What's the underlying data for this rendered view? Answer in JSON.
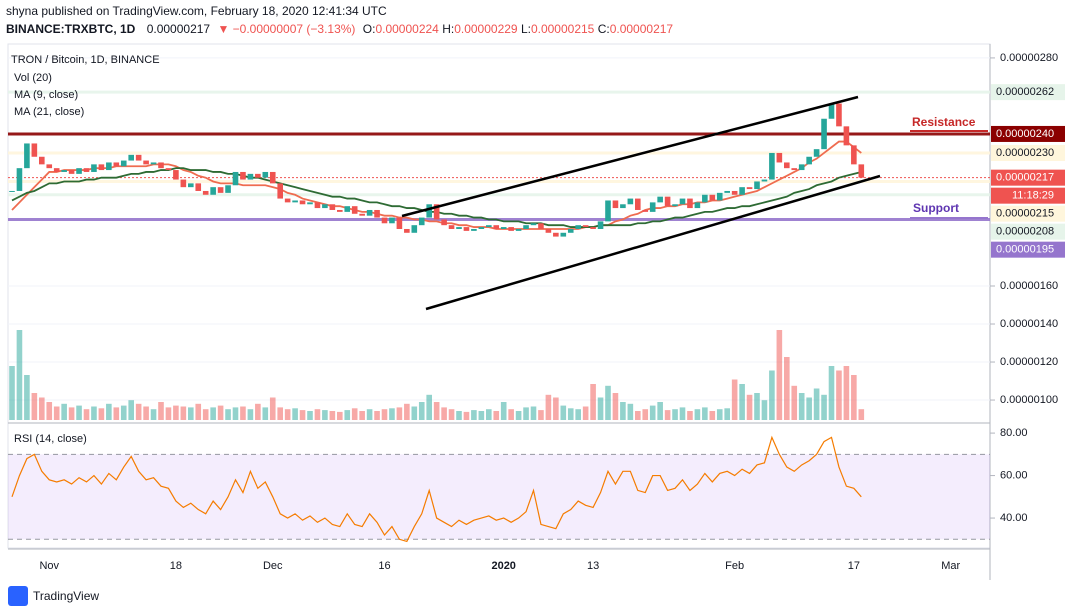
{
  "header": {
    "published": "shyna published on TradingView.com, February 18, 2020 12:41:34 UTC",
    "symbol": "BINANCE:TRXBTC, 1D",
    "last": "0.00000217",
    "change": "▼ −0.00000007 (−3.13%)",
    "o_label": "O:",
    "o": "0.00000224",
    "h_label": "H:",
    "h": "0.00000229",
    "l_label": "L:",
    "l": "0.00000215",
    "c_label": "C:",
    "c": "0.00000217"
  },
  "legend": {
    "pair": "TRON / Bitcoin, 1D, BINANCE",
    "vol": "Vol (20)",
    "ma9": "MA (9, close)",
    "ma21": "MA (21, close)"
  },
  "annotations": {
    "resistance": "Resistance",
    "support": "Support"
  },
  "footer": {
    "brand": "TradingView"
  },
  "chart_data": {
    "type": "candlestick",
    "up_color": "#26a69a",
    "down_color": "#ef5350",
    "ylim": [
      8.95e-07,
      2.868e-06
    ],
    "yticks": [
      {
        "value": 2.8e-06,
        "label": "0.00000280"
      },
      {
        "value": 1.6e-06,
        "label": "0.00000160"
      },
      {
        "value": 1.4e-06,
        "label": "0.00000140"
      },
      {
        "value": 1.2e-06,
        "label": "0.00000120"
      },
      {
        "value": 1e-06,
        "label": "0.00000100"
      }
    ],
    "badges": [
      {
        "value": 2.62e-06,
        "label": "0.00000262",
        "fill": "#e6f4ea",
        "color": "#131722"
      },
      {
        "value": 2.4e-06,
        "label": "0.00000240",
        "fill": "#8b0000",
        "color": "#ffffff"
      },
      {
        "value": 2.3e-06,
        "label": "0.00000230",
        "fill": "#fff6dc",
        "color": "#131722"
      },
      {
        "value": 2.17e-06,
        "label": "0.00000217",
        "fill": "#ef5350",
        "color": "#ffffff"
      },
      {
        "label": "11:18:29",
        "fill": "#ef5350",
        "color": "#ffffff"
      },
      {
        "value": 2.15e-06,
        "label": "0.00000215",
        "fill": "#fff6dc",
        "color": "#131722"
      },
      {
        "value": 2.08e-06,
        "label": "0.00000208",
        "fill": "#e6f4ea",
        "color": "#131722"
      },
      {
        "value": 1.95e-06,
        "label": "0.00000195",
        "fill": "#9575cd",
        "color": "#ffffff"
      }
    ],
    "categories": [
      null,
      null,
      null,
      null,
      null,
      "Nov",
      null,
      null,
      null,
      null,
      null,
      null,
      null,
      null,
      null,
      null,
      null,
      null,
      null,
      null,
      null,
      null,
      "18",
      null,
      null,
      null,
      null,
      null,
      null,
      null,
      null,
      null,
      null,
      null,
      null,
      "Dec",
      null,
      null,
      null,
      null,
      null,
      null,
      null,
      null,
      null,
      null,
      null,
      null,
      null,
      null,
      "16",
      null,
      null,
      null,
      null,
      null,
      null,
      null,
      null,
      null,
      null,
      null,
      null,
      null,
      null,
      null,
      "2020",
      null,
      null,
      null,
      null,
      null,
      null,
      null,
      null,
      null,
      null,
      null,
      "13",
      null,
      null,
      null,
      null,
      null,
      null,
      null,
      null,
      null,
      null,
      null,
      null,
      null,
      null,
      null,
      null,
      null,
      null,
      "Feb",
      null,
      null,
      null,
      null,
      null,
      null,
      null,
      null,
      null,
      null,
      null,
      null,
      null,
      null,
      null,
      "17",
      null,
      null,
      null,
      null,
      null,
      null,
      null,
      null,
      null,
      null,
      null,
      null,
      "Mar",
      null,
      null,
      null,
      null,
      null
    ],
    "close": [
      2.1e-06,
      2.22e-06,
      2.35e-06,
      2.28e-06,
      2.24e-06,
      2.22e-06,
      2.2e-06,
      2.21e-06,
      2.19e-06,
      2.22e-06,
      2.2e-06,
      2.24e-06,
      2.21e-06,
      2.25e-06,
      2.23e-06,
      2.26e-06,
      2.29e-06,
      2.26e-06,
      2.24e-06,
      2.25e-06,
      2.22e-06,
      2.21e-06,
      2.16e-06,
      2.12e-06,
      2.14e-06,
      2.1e-06,
      2.08e-06,
      2.12e-06,
      2.09e-06,
      2.13e-06,
      2.2e-06,
      2.16e-06,
      2.19e-06,
      2.17e-06,
      2.2e-06,
      2.14e-06,
      2.06e-06,
      2.04e-06,
      2.05e-06,
      2.03e-06,
      2.04e-06,
      2.01e-06,
      2.03e-06,
      2e-06,
      1.99e-06,
      2.02e-06,
      1.98e-06,
      1.97e-06,
      2e-06,
      1.96e-06,
      1.93e-06,
      1.96e-06,
      1.9e-06,
      1.88e-06,
      1.92e-06,
      1.96e-06,
      2.03e-06,
      1.95e-06,
      1.92e-06,
      1.9e-06,
      1.91e-06,
      1.89e-06,
      1.9e-06,
      1.91e-06,
      1.92e-06,
      1.9e-06,
      1.91e-06,
      1.89e-06,
      1.9e-06,
      1.92e-06,
      1.93e-06,
      1.9e-06,
      1.88e-06,
      1.86e-06,
      1.88e-06,
      1.9e-06,
      1.92e-06,
      1.91e-06,
      1.9e-06,
      1.94e-06,
      2.05e-06,
      2.01e-06,
      2.03e-06,
      2.06e-06,
      2e-06,
      1.99e-06,
      2.04e-06,
      2.07e-06,
      2.02e-06,
      2.03e-06,
      2.06e-06,
      2.01e-06,
      2.04e-06,
      2.08e-06,
      2.05e-06,
      2.09e-06,
      2.1e-06,
      2.08e-06,
      2.12e-06,
      2.11e-06,
      2.15e-06,
      2.16e-06,
      2.3e-06,
      2.25e-06,
      2.22e-06,
      2.21e-06,
      2.24e-06,
      2.28e-06,
      2.32e-06,
      2.48e-06,
      2.56e-06,
      2.44e-06,
      2.34e-06,
      2.24e-06,
      2.17e-06,
      null,
      null,
      null,
      null,
      null,
      null,
      null,
      null,
      null,
      null,
      null,
      null,
      null,
      null,
      null,
      null,
      null
    ],
    "series": [
      {
        "name": "MA (9, close)",
        "color": "#ef6c50",
        "values": [
          2e-06,
          2.04e-06,
          2.08e-06,
          2.12e-06,
          2.16e-06,
          2.2e-06,
          2.2e-06,
          2.21e-06,
          2.21e-06,
          2.21e-06,
          2.21e-06,
          2.22e-06,
          2.22e-06,
          2.22e-06,
          2.23e-06,
          2.23e-06,
          2.23e-06,
          2.23e-06,
          2.23e-06,
          2.24e-06,
          2.24e-06,
          2.24e-06,
          2.23e-06,
          2.21e-06,
          2.2e-06,
          2.18e-06,
          2.17e-06,
          2.15e-06,
          2.14e-06,
          2.14e-06,
          2.14e-06,
          2.13e-06,
          2.13e-06,
          2.13e-06,
          2.13e-06,
          2.12e-06,
          2.11e-06,
          2.09e-06,
          2.08e-06,
          2.06e-06,
          2.05e-06,
          2.04e-06,
          2.03e-06,
          2.02e-06,
          2.02e-06,
          2.01e-06,
          2e-06,
          1.99e-06,
          1.99e-06,
          1.98e-06,
          1.97e-06,
          1.97e-06,
          1.96e-06,
          1.96e-06,
          1.95e-06,
          1.95e-06,
          1.94e-06,
          1.94e-06,
          1.93e-06,
          1.93e-06,
          1.92e-06,
          1.92e-06,
          1.91e-06,
          1.91e-06,
          1.91e-06,
          1.9e-06,
          1.9e-06,
          1.9e-06,
          1.9e-06,
          1.9e-06,
          1.9e-06,
          1.9e-06,
          1.9e-06,
          1.9e-06,
          1.9e-06,
          1.9e-06,
          1.9e-06,
          1.91e-06,
          1.91e-06,
          1.92e-06,
          1.92e-06,
          1.94e-06,
          1.95e-06,
          1.97e-06,
          1.98e-06,
          2e-06,
          2.01e-06,
          2.01e-06,
          2.02e-06,
          2.02e-06,
          2.03e-06,
          2.03e-06,
          2.04e-06,
          2.04e-06,
          2.05e-06,
          2.05e-06,
          2.06e-06,
          2.07e-06,
          2.08e-06,
          2.09e-06,
          2.1e-06,
          2.12e-06,
          2.14e-06,
          2.16e-06,
          2.18e-06,
          2.2e-06,
          2.22e-06,
          2.25e-06,
          2.27e-06,
          2.3e-06,
          2.33e-06,
          2.36e-06,
          2.36e-06,
          2.33e-06,
          2.3e-06,
          null,
          null,
          null,
          null,
          null,
          null,
          null,
          null,
          null,
          null,
          null,
          null,
          null,
          null,
          null,
          null,
          null
        ]
      },
      {
        "name": "MA (21, close)",
        "color": "#2e6b34",
        "values": [
          2.05e-06,
          2.07e-06,
          2.09e-06,
          2.1e-06,
          2.12e-06,
          2.14e-06,
          2.14e-06,
          2.15e-06,
          2.15e-06,
          2.15e-06,
          2.16e-06,
          2.16e-06,
          2.17e-06,
          2.17e-06,
          2.17e-06,
          2.18e-06,
          2.19e-06,
          2.19e-06,
          2.2e-06,
          2.2e-06,
          2.21e-06,
          2.21e-06,
          2.22e-06,
          2.22e-06,
          2.21e-06,
          2.21e-06,
          2.21e-06,
          2.2e-06,
          2.2e-06,
          2.19e-06,
          2.19e-06,
          2.18e-06,
          2.17e-06,
          2.17e-06,
          2.16e-06,
          2.15e-06,
          2.14e-06,
          2.13e-06,
          2.12e-06,
          2.11e-06,
          2.1e-06,
          2.09e-06,
          2.08e-06,
          2.07e-06,
          2.07e-06,
          2.06e-06,
          2.06e-06,
          2.05e-06,
          2.04e-06,
          2.04e-06,
          2.03e-06,
          2.02e-06,
          2.02e-06,
          2.01e-06,
          2.01e-06,
          2e-06,
          1.99e-06,
          1.99e-06,
          1.98e-06,
          1.98e-06,
          1.97e-06,
          1.97e-06,
          1.96e-06,
          1.96e-06,
          1.95e-06,
          1.95e-06,
          1.94e-06,
          1.94e-06,
          1.94e-06,
          1.93e-06,
          1.93e-06,
          1.93e-06,
          1.92e-06,
          1.92e-06,
          1.92e-06,
          1.91e-06,
          1.91e-06,
          1.91e-06,
          1.91e-06,
          1.92e-06,
          1.92e-06,
          1.92e-06,
          1.92e-06,
          1.92e-06,
          1.93e-06,
          1.93e-06,
          1.94e-06,
          1.94e-06,
          1.95e-06,
          1.96e-06,
          1.96e-06,
          1.97e-06,
          1.98e-06,
          1.99e-06,
          1.99e-06,
          2e-06,
          2.01e-06,
          2.01e-06,
          2.02e-06,
          2.02e-06,
          2.03e-06,
          2.04e-06,
          2.05e-06,
          2.06e-06,
          2.07e-06,
          2.09e-06,
          2.1e-06,
          2.11e-06,
          2.13e-06,
          2.14e-06,
          2.15e-06,
          2.17e-06,
          2.18e-06,
          2.19e-06,
          2.2e-06,
          null,
          null,
          null,
          null,
          null,
          null,
          null,
          null,
          null,
          null,
          null,
          null,
          null,
          null,
          null,
          null,
          null
        ]
      }
    ],
    "volume": [
      60,
      100,
      50,
      30,
      25,
      20,
      15,
      18,
      14,
      16,
      12,
      15,
      13,
      18,
      14,
      16,
      22,
      18,
      15,
      12,
      20,
      14,
      16,
      15,
      14,
      18,
      12,
      14,
      16,
      12,
      14,
      15,
      12,
      18,
      14,
      25,
      14,
      12,
      13,
      11,
      10,
      12,
      11,
      10,
      9,
      11,
      13,
      10,
      12,
      10,
      12,
      13,
      14,
      18,
      15,
      20,
      28,
      20,
      14,
      12,
      10,
      9,
      11,
      10,
      12,
      10,
      20,
      12,
      10,
      14,
      15,
      11,
      28,
      25,
      16,
      13,
      12,
      15,
      40,
      25,
      38,
      30,
      20,
      18,
      10,
      12,
      16,
      20,
      11,
      12,
      14,
      10,
      12,
      14,
      10,
      12,
      13,
      45,
      40,
      28,
      30,
      22,
      55,
      100,
      70,
      38,
      30,
      25,
      35,
      28,
      60,
      55,
      60,
      50,
      12,
      null,
      null,
      null,
      null,
      null,
      null,
      null,
      null,
      null,
      null,
      null,
      null,
      null,
      null,
      null,
      null,
      null
    ],
    "rsi": {
      "title": "RSI (14, close)",
      "color": "#f57c00",
      "ylim": [
        25.9,
        82.4
      ],
      "yticks": [
        {
          "value": 80,
          "label": "80.00"
        },
        {
          "value": 60,
          "label": "60.00"
        },
        {
          "value": 40,
          "label": "40.00"
        }
      ],
      "bands": [
        30,
        70
      ],
      "values": [
        50,
        60,
        68,
        70,
        62,
        58,
        57,
        58,
        56,
        59,
        57,
        60,
        56,
        61,
        58,
        64,
        69,
        62,
        58,
        59,
        55,
        54,
        48,
        45,
        47,
        44,
        42,
        48,
        44,
        50,
        58,
        52,
        62,
        54,
        57,
        50,
        42,
        40,
        42,
        39,
        41,
        38,
        40,
        37,
        36,
        42,
        37,
        36,
        42,
        38,
        32,
        36,
        30,
        29,
        36,
        42,
        53,
        40,
        38,
        36,
        39,
        37,
        39,
        40,
        41,
        39,
        40,
        38,
        40,
        43,
        53,
        37,
        36,
        35,
        42,
        44,
        48,
        46,
        45,
        52,
        62,
        56,
        62,
        62,
        53,
        52,
        60,
        60,
        53,
        54,
        58,
        53,
        56,
        61,
        57,
        61,
        62,
        60,
        63,
        61,
        65,
        66,
        78,
        70,
        64,
        62,
        65,
        67,
        70,
        76,
        78,
        64,
        55,
        54,
        50,
        null,
        null,
        null,
        null,
        null,
        null,
        null,
        null,
        null,
        null,
        null,
        null,
        null,
        null,
        null,
        null,
        null
      ]
    }
  }
}
